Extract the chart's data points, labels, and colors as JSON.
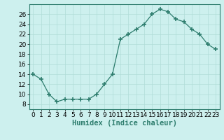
{
  "x": [
    0,
    1,
    2,
    3,
    4,
    5,
    6,
    7,
    8,
    9,
    10,
    11,
    12,
    13,
    14,
    15,
    16,
    17,
    18,
    19,
    20,
    21,
    22,
    23
  ],
  "y": [
    14,
    13,
    10,
    8.5,
    9,
    9,
    9,
    9,
    10,
    12,
    14,
    21,
    22,
    23,
    24,
    26,
    27,
    26.5,
    25,
    24.5,
    23,
    22,
    20,
    19
  ],
  "line_color": "#2e7d6e",
  "marker_color": "#2e7d6e",
  "bg_color": "#cdf0ee",
  "grid_color": "#b0ddd8",
  "xlabel": "Humidex (Indice chaleur)",
  "xlim": [
    -0.5,
    23.5
  ],
  "ylim": [
    7,
    28
  ],
  "yticks": [
    8,
    10,
    12,
    14,
    16,
    18,
    20,
    22,
    24,
    26
  ],
  "xticks": [
    0,
    1,
    2,
    3,
    4,
    5,
    6,
    7,
    8,
    9,
    10,
    11,
    12,
    13,
    14,
    15,
    16,
    17,
    18,
    19,
    20,
    21,
    22,
    23
  ],
  "xlabel_fontsize": 7.5,
  "tick_fontsize": 6.5
}
